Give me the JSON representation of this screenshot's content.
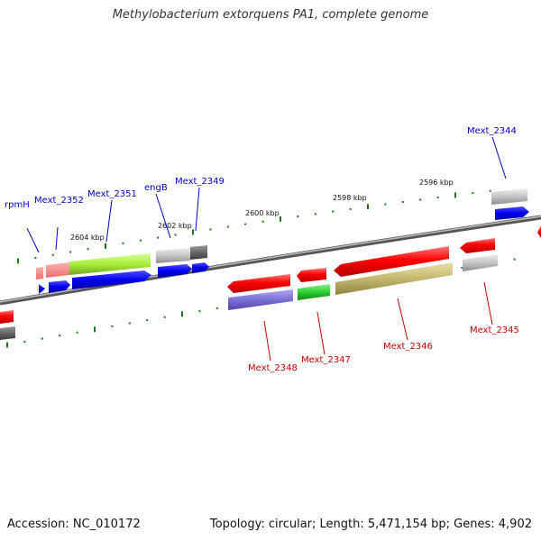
{
  "title": "Methylobacterium extorquens PA1, complete genome",
  "accession": "Accession: NC_010172",
  "summary": "Topology: circular; Length: 5,471,154 bp; Genes: 4,902",
  "colors": {
    "backbone": "#7a7a7a",
    "tick": "#1a7a1a",
    "forward_label": "#0000cc",
    "reverse_label": "#cc0000"
  },
  "scale_labels": [
    "2604 kbp",
    "2602 kbp",
    "2600 kbp",
    "2598 kbp",
    "2596 kbp"
  ],
  "forward_genes": [
    {
      "name": "rpmH",
      "color": "red"
    },
    {
      "name": "Mext_2352",
      "color": "blue"
    },
    {
      "name": "Mext_2351",
      "color": "green"
    },
    {
      "name": "engB",
      "color": "grey"
    },
    {
      "name": "Mext_2349",
      "color": "blue"
    },
    {
      "name": "Mext_2344",
      "color": "grey"
    }
  ],
  "reverse_genes": [
    {
      "name": "Mext_2348",
      "color": "red"
    },
    {
      "name": "Mext_2347",
      "color": "green"
    },
    {
      "name": "Mext_2346",
      "color": "olive"
    },
    {
      "name": "Mext_2345",
      "color": "red"
    }
  ]
}
